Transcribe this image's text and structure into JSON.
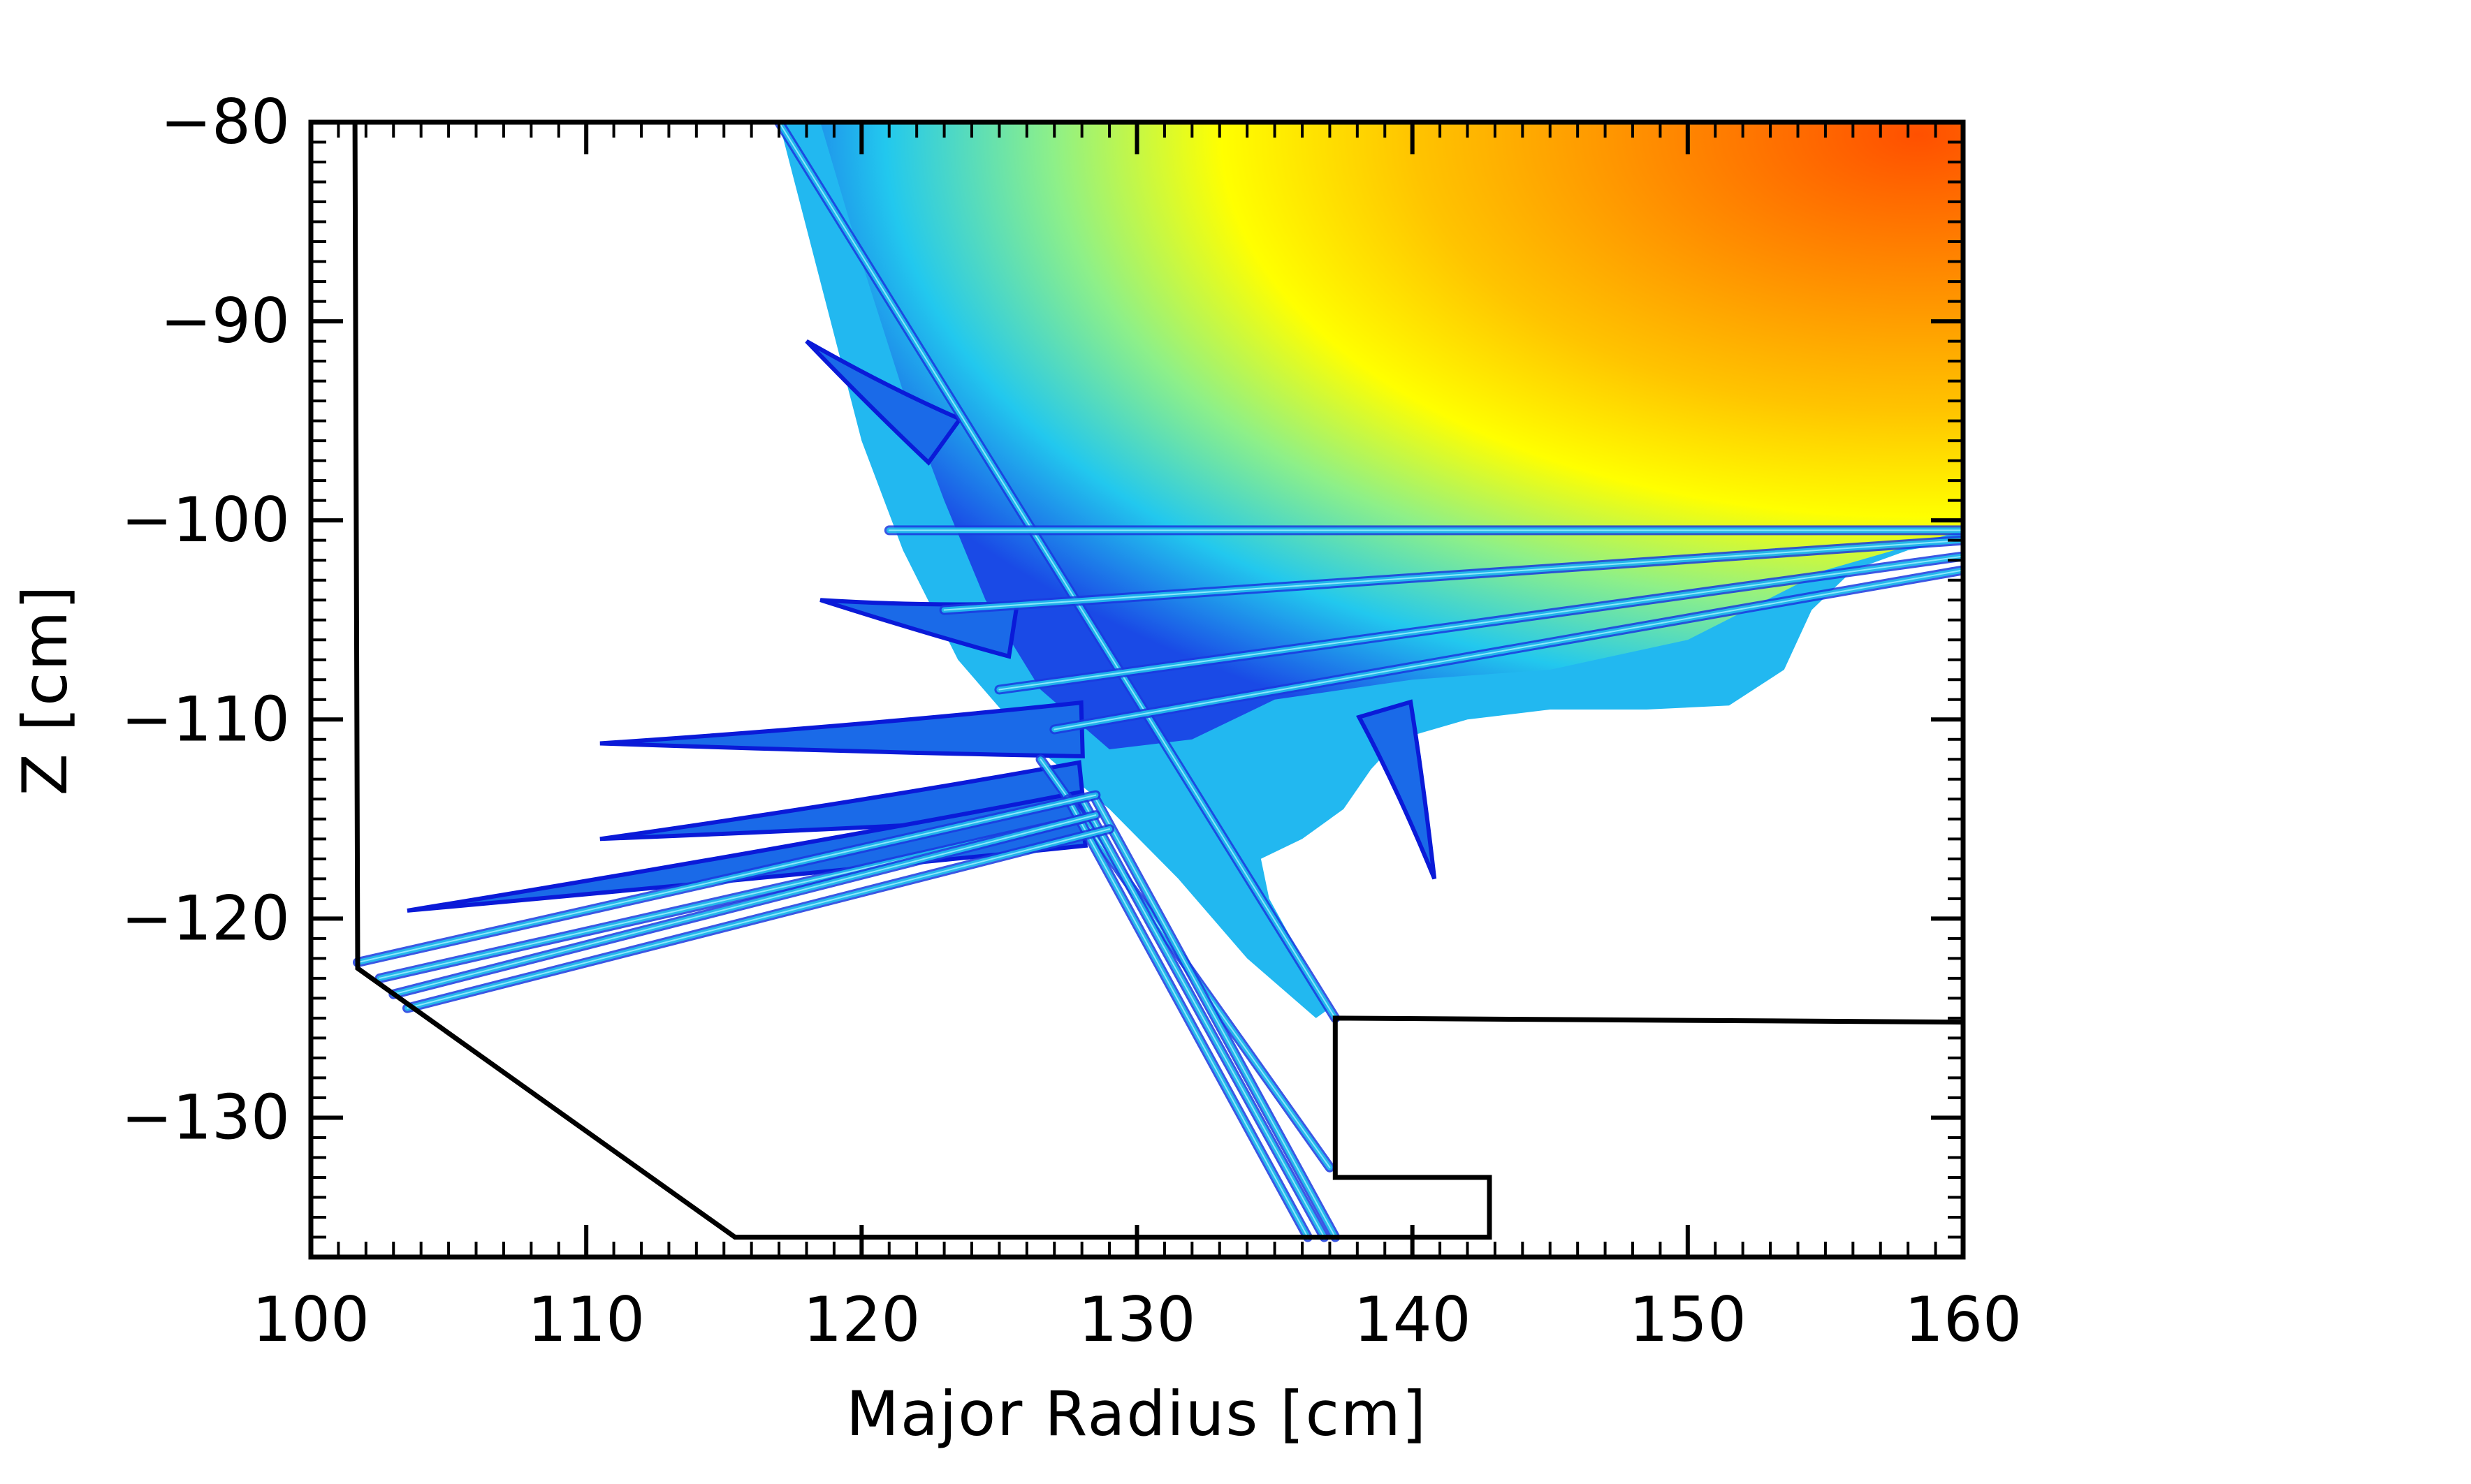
{
  "chart_data": {
    "type": "contour",
    "title": "",
    "xlabel": "Major Radius [cm]",
    "ylabel": "Z [cm]",
    "xlim": [
      100,
      160
    ],
    "ylim": [
      -137,
      -80
    ],
    "x_ticks": [
      100,
      110,
      120,
      130,
      140,
      150,
      160
    ],
    "y_ticks": [
      -80,
      -90,
      -100,
      -110,
      -120,
      -130
    ],
    "x_tick_labels": [
      "100",
      "110",
      "120",
      "130",
      "140",
      "150",
      "160"
    ],
    "y_tick_labels": [
      "−80",
      "−90",
      "−100",
      "−110",
      "−120",
      "−130"
    ],
    "grid": false,
    "legend": "none",
    "colormap": [
      "#0a1ad8",
      "#1a7cf0",
      "#22c8ee",
      "#7ff09a",
      "#ffff00",
      "#ffc000",
      "#ff5000"
    ],
    "wall_outline": [
      [
        101.6,
        -80
      ],
      [
        101.7,
        -122.5
      ],
      [
        115.4,
        -136
      ],
      [
        142.8,
        -136
      ],
      [
        142.8,
        -133
      ],
      [
        137.2,
        -133
      ],
      [
        137.2,
        -125
      ],
      [
        160,
        -125.2
      ]
    ],
    "beams": [
      {
        "r0": 117.0,
        "z0": -80,
        "r1": 137.2,
        "z1": -125
      },
      {
        "r0": 126.5,
        "z0": -112,
        "r1": 137.0,
        "z1": -132.5
      },
      {
        "r0": 127.5,
        "z0": -114,
        "r1": 136.2,
        "z1": -136
      },
      {
        "r0": 128.0,
        "z0": -114,
        "r1": 136.8,
        "z1": -136
      },
      {
        "r0": 128.5,
        "z0": -114,
        "r1": 137.2,
        "z1": -136
      },
      {
        "r0": 101.7,
        "z0": -122.2,
        "r1": 128.5,
        "z1": -113.8
      },
      {
        "r0": 102.5,
        "z0": -123.0,
        "r1": 128.0,
        "z1": -115.0
      },
      {
        "r0": 103.0,
        "z0": -123.8,
        "r1": 128.5,
        "z1": -114.8
      },
      {
        "r0": 103.5,
        "z0": -124.5,
        "r1": 129.0,
        "z1": -115.5
      },
      {
        "r0": 121.0,
        "z0": -100.5,
        "r1": 160,
        "z1": -100.5
      },
      {
        "r0": 123.0,
        "z0": -104.5,
        "r1": 160,
        "z1": -101.0
      },
      {
        "r0": 125.0,
        "z0": -108.5,
        "r1": 160,
        "z1": -101.8
      },
      {
        "r0": 127.0,
        "z0": -110.5,
        "r1": 160,
        "z1": -102.5
      }
    ],
    "fingers": [
      {
        "tip_r": 118.0,
        "tip_z": -91.0,
        "base_r": 123.0,
        "base_z": -96.0
      },
      {
        "tip_r": 118.5,
        "tip_z": -104.0,
        "base_r": 125.5,
        "base_z": -105.5
      },
      {
        "tip_r": 110.5,
        "tip_z": -111.2,
        "base_r": 128.0,
        "base_z": -110.5
      },
      {
        "tip_r": 110.5,
        "tip_z": -116.0,
        "base_r": 128.0,
        "base_z": -113.5
      },
      {
        "tip_r": 103.5,
        "tip_z": -119.6,
        "base_r": 128.0,
        "base_z": -115.0
      },
      {
        "tip_r": 140.8,
        "tip_z": -118.0,
        "base_r": 139.0,
        "base_z": -109.5
      }
    ]
  }
}
